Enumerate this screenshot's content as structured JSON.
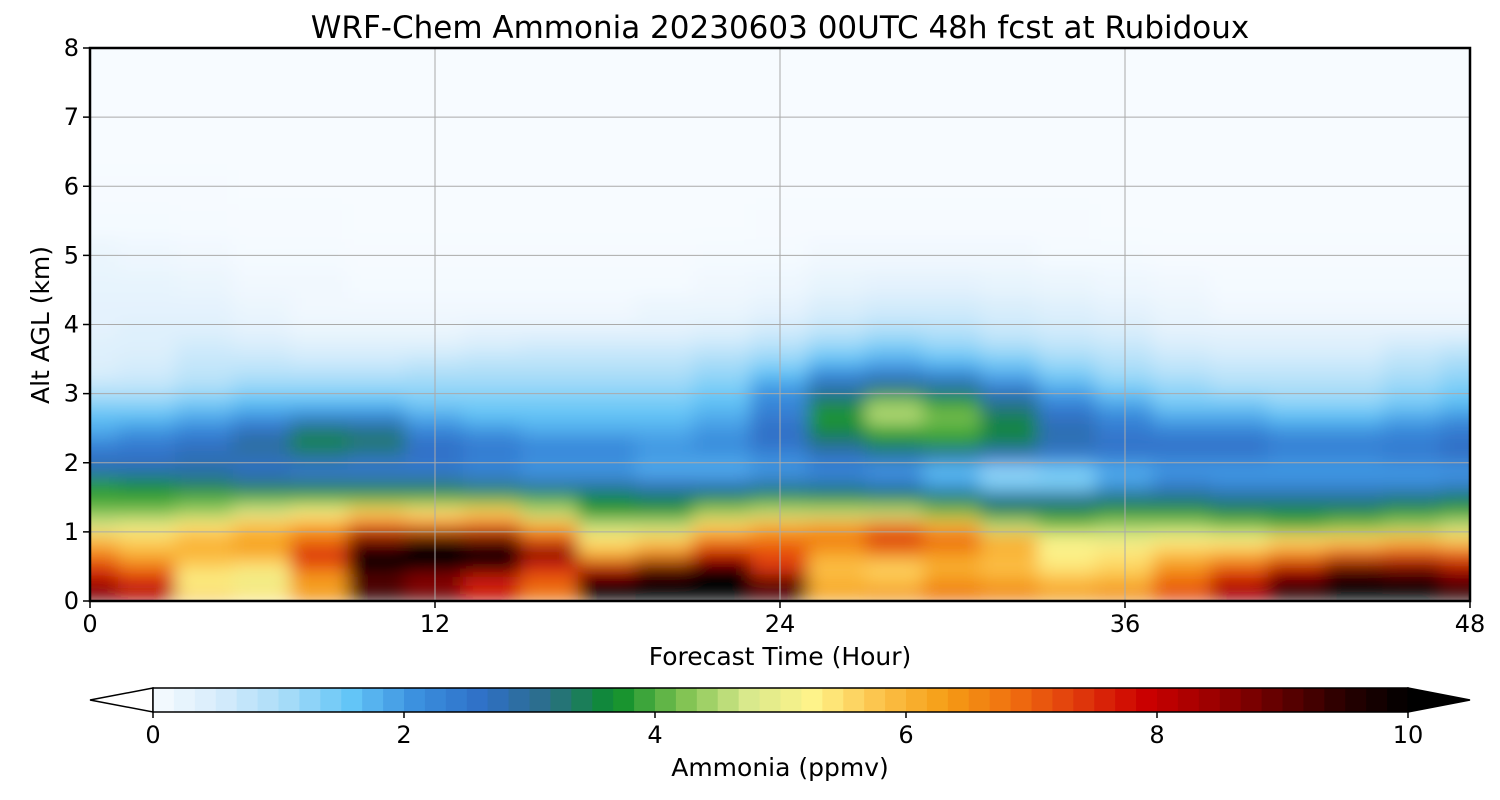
{
  "chart_data": {
    "type": "heatmap",
    "title": "WRF-Chem Ammonia  20230603 00UTC 48h fcst at Rubidoux",
    "xlabel": "Forecast Time (Hour)",
    "ylabel": "Alt AGL (km)",
    "xlim": [
      0,
      48
    ],
    "ylim": [
      0,
      8
    ],
    "x_ticks": [
      "0",
      "12",
      "24",
      "36",
      "48"
    ],
    "y_ticks": [
      "0",
      "1",
      "2",
      "3",
      "4",
      "5",
      "6",
      "7",
      "8"
    ],
    "grid": true,
    "colorbar": {
      "label": "Ammonia  (ppmv)",
      "range": [
        0,
        10
      ],
      "ticks": [
        "0",
        "2",
        "4",
        "6",
        "8",
        "10"
      ],
      "extend": "both",
      "colors": [
        "#f7fbff",
        "#d6ecfb",
        "#a8dcf8",
        "#63c5f7",
        "#3a8fde",
        "#2f6fc6",
        "#2b6e86",
        "#0b8e2a",
        "#7cc150",
        "#d8e98c",
        "#fff38a",
        "#fcc24a",
        "#f59d15",
        "#f07010",
        "#e03a0c",
        "#cc0000",
        "#9e0000",
        "#640000",
        "#2a0000",
        "#000000"
      ]
    },
    "x_hours": [
      0,
      2,
      4,
      6,
      8,
      10,
      12,
      14,
      16,
      18,
      20,
      22,
      24,
      26,
      28,
      30,
      32,
      34,
      36,
      38,
      40,
      42,
      44,
      46,
      48
    ],
    "alt_km": [
      0.1,
      0.3,
      0.5,
      0.7,
      0.9,
      1.1,
      1.3,
      1.5,
      1.7,
      1.9,
      2.1,
      2.3,
      2.5,
      2.7,
      2.9,
      3.1,
      3.3,
      3.5,
      3.7,
      3.9,
      4.2,
      4.6,
      5.0,
      5.5,
      6.0,
      6.5,
      7.0,
      7.5,
      8.0
    ],
    "values_ppmv": [
      [
        8.8,
        8.2,
        5.6,
        5.4,
        6.4,
        9.5,
        9.0,
        8.0,
        6.8,
        9.8,
        10.0,
        10.0,
        9.2,
        6.2,
        6.4,
        6.8,
        6.6,
        6.3,
        6.5,
        7.2,
        8.4,
        9.5,
        10.0,
        10.0,
        9.6
      ],
      [
        8.2,
        7.6,
        5.2,
        5.0,
        6.2,
        9.0,
        8.5,
        7.6,
        7.0,
        10.0,
        10.0,
        10.0,
        9.0,
        6.0,
        5.8,
        6.4,
        6.2,
        5.9,
        6.0,
        6.9,
        8.0,
        9.2,
        10.0,
        9.8,
        9.0
      ],
      [
        7.4,
        6.8,
        5.6,
        5.4,
        7.0,
        10.0,
        10.0,
        9.6,
        7.6,
        8.0,
        9.0,
        9.8,
        7.4,
        5.8,
        5.6,
        6.0,
        5.8,
        5.4,
        5.6,
        6.4,
        7.0,
        8.0,
        9.0,
        8.8,
        8.2
      ],
      [
        6.6,
        6.0,
        6.0,
        6.2,
        7.6,
        10.0,
        10.0,
        10.0,
        8.8,
        6.0,
        6.6,
        7.8,
        7.2,
        6.2,
        6.6,
        6.4,
        6.0,
        5.2,
        5.4,
        5.8,
        6.0,
        6.5,
        7.0,
        7.2,
        7.0
      ],
      [
        5.8,
        5.6,
        6.0,
        6.2,
        6.8,
        8.8,
        9.6,
        9.0,
        7.2,
        5.4,
        5.6,
        6.6,
        6.8,
        6.8,
        7.6,
        7.0,
        6.0,
        5.2,
        5.0,
        5.2,
        5.2,
        5.5,
        5.6,
        5.8,
        5.6
      ],
      [
        4.8,
        5.0,
        5.4,
        5.8,
        6.2,
        7.0,
        6.8,
        7.0,
        6.0,
        4.6,
        4.6,
        5.6,
        6.0,
        6.2,
        6.6,
        6.0,
        4.6,
        4.2,
        4.4,
        4.4,
        4.2,
        4.0,
        4.2,
        4.4,
        4.6
      ],
      [
        4.2,
        4.2,
        4.4,
        4.8,
        5.2,
        5.6,
        5.4,
        5.6,
        4.6,
        3.8,
        3.8,
        4.4,
        4.6,
        4.6,
        4.6,
        4.2,
        3.6,
        3.6,
        3.8,
        3.8,
        3.6,
        3.6,
        3.6,
        3.8,
        3.9
      ],
      [
        3.9,
        3.9,
        4.0,
        4.0,
        4.0,
        4.0,
        4.0,
        4.0,
        3.9,
        3.6,
        3.4,
        3.6,
        3.8,
        3.7,
        3.6,
        3.4,
        3.0,
        3.0,
        3.2,
        3.2,
        3.0,
        3.0,
        3.0,
        3.2,
        3.4
      ],
      [
        3.8,
        3.6,
        3.4,
        3.2,
        3.2,
        3.2,
        3.2,
        3.0,
        2.8,
        2.8,
        2.6,
        2.6,
        2.8,
        2.8,
        2.6,
        2.0,
        1.4,
        1.4,
        2.0,
        2.4,
        2.2,
        2.2,
        2.2,
        2.2,
        2.4
      ],
      [
        2.8,
        2.8,
        2.8,
        2.6,
        2.4,
        2.4,
        2.4,
        2.2,
        2.0,
        2.0,
        1.8,
        1.8,
        2.0,
        2.2,
        2.0,
        1.6,
        1.2,
        1.4,
        1.8,
        2.0,
        2.0,
        2.0,
        2.0,
        2.0,
        2.0
      ],
      [
        2.6,
        2.6,
        2.8,
        2.8,
        3.0,
        2.8,
        2.6,
        2.4,
        2.2,
        2.2,
        2.0,
        2.0,
        2.2,
        2.6,
        2.8,
        2.8,
        2.6,
        2.4,
        2.4,
        2.4,
        2.4,
        2.2,
        2.2,
        2.4,
        2.6
      ],
      [
        2.2,
        2.4,
        2.6,
        3.0,
        3.6,
        3.4,
        2.6,
        2.4,
        2.2,
        2.2,
        2.0,
        2.2,
        2.6,
        3.2,
        3.6,
        3.8,
        3.4,
        2.8,
        2.6,
        2.6,
        2.6,
        2.4,
        2.4,
        2.4,
        2.6
      ],
      [
        1.8,
        2.0,
        2.2,
        2.6,
        3.2,
        3.0,
        2.2,
        2.0,
        1.8,
        1.8,
        1.8,
        2.0,
        2.6,
        3.6,
        4.0,
        4.0,
        3.6,
        2.8,
        2.4,
        2.2,
        2.2,
        2.0,
        2.0,
        2.2,
        2.4
      ],
      [
        1.6,
        1.6,
        1.8,
        2.0,
        2.2,
        2.2,
        1.8,
        1.6,
        1.6,
        1.6,
        1.6,
        1.8,
        2.4,
        3.8,
        4.6,
        4.2,
        3.4,
        2.6,
        2.2,
        1.8,
        1.8,
        1.6,
        1.6,
        1.8,
        2.0
      ],
      [
        1.2,
        1.2,
        1.4,
        1.6,
        1.6,
        1.6,
        1.4,
        1.4,
        1.4,
        1.4,
        1.4,
        1.6,
        2.2,
        3.4,
        4.2,
        3.8,
        3.0,
        2.2,
        1.8,
        1.4,
        1.4,
        1.2,
        1.2,
        1.4,
        1.6
      ],
      [
        0.8,
        0.8,
        1.0,
        1.2,
        1.2,
        1.2,
        1.2,
        1.2,
        1.2,
        1.2,
        1.2,
        1.4,
        2.0,
        2.8,
        3.2,
        3.0,
        2.4,
        1.8,
        1.4,
        1.2,
        1.0,
        1.0,
        1.0,
        1.2,
        1.4
      ],
      [
        0.5,
        0.6,
        0.8,
        0.9,
        0.9,
        0.9,
        1.0,
        1.0,
        1.0,
        1.0,
        1.0,
        1.2,
        1.6,
        2.2,
        2.4,
        2.2,
        1.8,
        1.4,
        1.1,
        0.9,
        0.8,
        0.8,
        0.8,
        1.0,
        1.2
      ],
      [
        0.4,
        0.5,
        0.7,
        0.7,
        0.6,
        0.6,
        0.7,
        0.8,
        0.8,
        0.8,
        0.8,
        1.0,
        1.2,
        1.6,
        1.8,
        1.6,
        1.4,
        1.1,
        0.9,
        0.7,
        0.6,
        0.6,
        0.6,
        0.8,
        1.0
      ],
      [
        0.4,
        0.4,
        0.6,
        0.5,
        0.4,
        0.4,
        0.4,
        0.5,
        0.6,
        0.6,
        0.6,
        0.7,
        0.9,
        1.2,
        1.4,
        1.2,
        1.0,
        0.8,
        0.7,
        0.5,
        0.4,
        0.4,
        0.4,
        0.6,
        0.7
      ],
      [
        0.3,
        0.4,
        0.4,
        0.3,
        0.2,
        0.2,
        0.2,
        0.3,
        0.3,
        0.3,
        0.3,
        0.4,
        0.6,
        0.8,
        1.0,
        0.9,
        0.7,
        0.6,
        0.5,
        0.3,
        0.3,
        0.3,
        0.3,
        0.3,
        0.3
      ],
      [
        0.3,
        0.3,
        0.3,
        0.2,
        0.1,
        0.1,
        0.1,
        0.1,
        0.1,
        0.1,
        0.2,
        0.2,
        0.3,
        0.5,
        0.6,
        0.6,
        0.5,
        0.4,
        0.3,
        0.2,
        0.1,
        0.1,
        0.1,
        0.1,
        0.1
      ],
      [
        0.25,
        0.25,
        0.2,
        0.1,
        0.1,
        0.05,
        0.05,
        0.05,
        0.05,
        0.05,
        0.05,
        0.1,
        0.15,
        0.25,
        0.3,
        0.3,
        0.25,
        0.2,
        0.15,
        0.1,
        0.05,
        0.05,
        0.05,
        0.05,
        0.05
      ],
      [
        0.2,
        0.15,
        0.1,
        0.05,
        0.05,
        0.02,
        0.02,
        0.02,
        0.02,
        0.02,
        0.02,
        0.05,
        0.05,
        0.1,
        0.1,
        0.1,
        0.1,
        0.05,
        0.05,
        0.02,
        0.02,
        0.02,
        0.02,
        0.02,
        0.02
      ],
      [
        0.05,
        0.05,
        0.03,
        0.02,
        0.02,
        0.0,
        0.0,
        0.0,
        0.0,
        0.0,
        0.0,
        0.0,
        0.02,
        0.02,
        0.02,
        0.02,
        0.02,
        0.02,
        0.0,
        0.0,
        0.0,
        0.0,
        0.0,
        0.0,
        0.0
      ],
      [
        0.02,
        0.02,
        0.02,
        0.0,
        0.0,
        0.0,
        0.0,
        0.0,
        0.0,
        0.0,
        0.0,
        0.0,
        0.0,
        0.0,
        0.0,
        0.0,
        0.0,
        0.0,
        0.0,
        0.0,
        0.0,
        0.0,
        0.0,
        0.0,
        0.0
      ],
      [
        0.0,
        0.0,
        0.0,
        0.0,
        0.0,
        0.0,
        0.0,
        0.0,
        0.0,
        0.0,
        0.0,
        0.0,
        0.0,
        0.0,
        0.0,
        0.0,
        0.0,
        0.0,
        0.0,
        0.0,
        0.0,
        0.0,
        0.0,
        0.0,
        0.0
      ],
      [
        0.0,
        0.0,
        0.0,
        0.0,
        0.0,
        0.0,
        0.0,
        0.0,
        0.0,
        0.0,
        0.0,
        0.0,
        0.0,
        0.0,
        0.0,
        0.0,
        0.0,
        0.0,
        0.0,
        0.0,
        0.0,
        0.0,
        0.0,
        0.0,
        0.0
      ],
      [
        0.0,
        0.0,
        0.0,
        0.0,
        0.0,
        0.0,
        0.0,
        0.0,
        0.0,
        0.0,
        0.0,
        0.0,
        0.0,
        0.0,
        0.0,
        0.0,
        0.0,
        0.0,
        0.0,
        0.0,
        0.0,
        0.0,
        0.0,
        0.0,
        0.0
      ],
      [
        0.0,
        0.0,
        0.0,
        0.0,
        0.0,
        0.0,
        0.0,
        0.0,
        0.0,
        0.0,
        0.0,
        0.0,
        0.0,
        0.0,
        0.0,
        0.0,
        0.0,
        0.0,
        0.0,
        0.0,
        0.0,
        0.0,
        0.0,
        0.0,
        0.0
      ]
    ]
  }
}
